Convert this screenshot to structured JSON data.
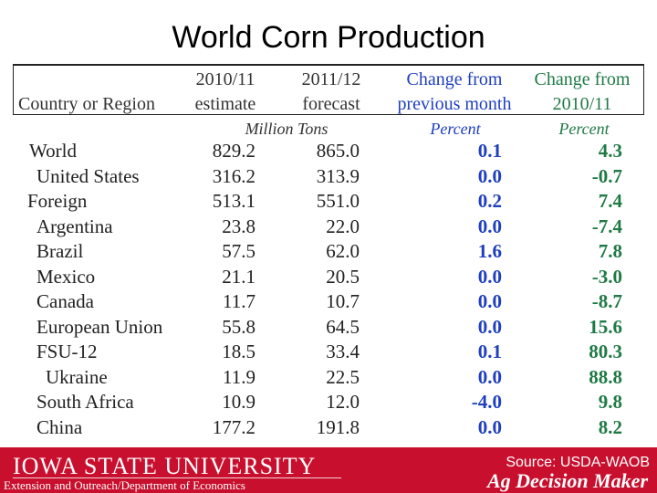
{
  "slide": {
    "title": "World Corn Production"
  },
  "table": {
    "headers": {
      "country": "Country or Region",
      "col1_line1": "2010/11",
      "col1_line2": "estimate",
      "col2_line1": "2011/12",
      "col2_line2": "forecast",
      "col3_line1": "Change from",
      "col3_line2": "previous month",
      "col4_line1": "Change from",
      "col4_line2": "2010/11"
    },
    "units": {
      "tons": "Million Tons",
      "pct_month": "Percent",
      "pct_year": "Percent"
    },
    "rows": [
      {
        "name": "World",
        "v2010": "829.2",
        "v2011": "865.0",
        "chg_month": "0.1",
        "chg_year": "4.3"
      },
      {
        "name": "United States",
        "v2010": "316.2",
        "v2011": "313.9",
        "chg_month": "0.0",
        "chg_year": "-0.7"
      },
      {
        "name": "Foreign",
        "v2010": "513.1",
        "v2011": "551.0",
        "chg_month": "0.2",
        "chg_year": "7.4"
      },
      {
        "name": "Argentina",
        "v2010": "23.8",
        "v2011": "22.0",
        "chg_month": "0.0",
        "chg_year": "-7.4"
      },
      {
        "name": "Brazil",
        "v2010": "57.5",
        "v2011": "62.0",
        "chg_month": "1.6",
        "chg_year": "7.8"
      },
      {
        "name": "Mexico",
        "v2010": "21.1",
        "v2011": "20.5",
        "chg_month": "0.0",
        "chg_year": "-3.0"
      },
      {
        "name": "Canada",
        "v2010": "11.7",
        "v2011": "10.7",
        "chg_month": "0.0",
        "chg_year": "-8.7"
      },
      {
        "name": "European Union",
        "v2010": "55.8",
        "v2011": "64.5",
        "chg_month": "0.0",
        "chg_year": "15.6"
      },
      {
        "name": "FSU-12",
        "v2010": "18.5",
        "v2011": "33.4",
        "chg_month": "0.1",
        "chg_year": "80.3"
      },
      {
        "name": "Ukraine",
        "v2010": "11.9",
        "v2011": "22.5",
        "chg_month": "0.0",
        "chg_year": "88.8"
      },
      {
        "name": "South Africa",
        "v2010": "10.9",
        "v2011": "12.0",
        "chg_month": "-4.0",
        "chg_year": "9.8"
      },
      {
        "name": "China",
        "v2010": "177.2",
        "v2011": "191.8",
        "chg_month": "0.0",
        "chg_year": "8.2"
      }
    ]
  },
  "footer": {
    "university": "IOWA STATE UNIVERSITY",
    "department": "Extension and Outreach/Department of Economics",
    "source": "Source: USDA-WAOB",
    "brand": "Ag Decision Maker"
  },
  "colors": {
    "footer_bg": "#c8102e",
    "month_change": "#1f3fbf",
    "year_change": "#1f7a45"
  }
}
